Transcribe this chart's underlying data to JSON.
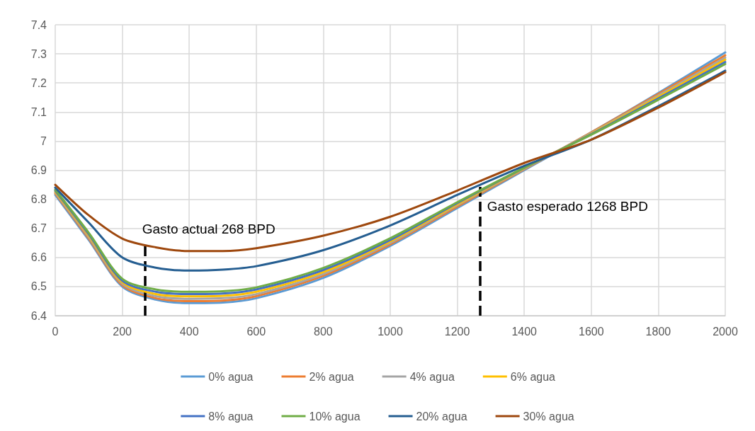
{
  "chart_data": {
    "type": "line",
    "x": [
      0,
      100,
      200,
      300,
      400,
      500,
      600,
      800,
      1000,
      1200,
      1400,
      1600,
      1800,
      2000
    ],
    "xlim": [
      0,
      2000
    ],
    "xticks": [
      0,
      200,
      400,
      600,
      800,
      1000,
      1200,
      1400,
      1600,
      1800,
      2000
    ],
    "ylim": [
      6.4,
      7.4
    ],
    "yticks": [
      6.4,
      6.5,
      6.6,
      6.7,
      6.8,
      6.9,
      7,
      7.1,
      7.2,
      7.3,
      7.4
    ],
    "grid": true,
    "legend": "bottom",
    "marker": "none",
    "line_style": "solid",
    "series": [
      {
        "name": "0% agua",
        "color": "#5b9bd5",
        "values": [
          6.815,
          6.66,
          6.5,
          6.455,
          6.443,
          6.445,
          6.46,
          6.53,
          6.64,
          6.77,
          6.9,
          7.03,
          7.165,
          7.305
        ]
      },
      {
        "name": "2% agua",
        "color": "#ed7d31",
        "values": [
          6.82,
          6.665,
          6.505,
          6.46,
          6.45,
          6.452,
          6.467,
          6.537,
          6.645,
          6.775,
          6.903,
          7.03,
          7.162,
          7.295
        ]
      },
      {
        "name": "4% agua",
        "color": "#a5a5a5",
        "values": [
          6.823,
          6.67,
          6.51,
          6.467,
          6.458,
          6.46,
          6.474,
          6.543,
          6.65,
          6.78,
          6.905,
          7.028,
          7.157,
          7.287
        ]
      },
      {
        "name": "6% agua",
        "color": "#ffc000",
        "values": [
          6.826,
          6.675,
          6.515,
          6.474,
          6.466,
          6.468,
          6.482,
          6.55,
          6.655,
          6.783,
          6.907,
          7.026,
          7.152,
          7.28
        ]
      },
      {
        "name": "8% agua",
        "color": "#4472c4",
        "values": [
          6.83,
          6.68,
          6.52,
          6.482,
          6.474,
          6.476,
          6.49,
          6.557,
          6.66,
          6.787,
          6.908,
          7.024,
          7.147,
          7.272
        ]
      },
      {
        "name": "10% agua",
        "color": "#70ad47",
        "values": [
          6.833,
          6.685,
          6.527,
          6.49,
          6.482,
          6.484,
          6.497,
          6.564,
          6.666,
          6.79,
          6.909,
          7.022,
          7.142,
          7.265
        ]
      },
      {
        "name": "20% agua",
        "color": "#255e91",
        "values": [
          6.84,
          6.72,
          6.6,
          6.565,
          6.555,
          6.558,
          6.57,
          6.625,
          6.71,
          6.815,
          6.915,
          7.005,
          7.12,
          7.242
        ]
      },
      {
        "name": "30% agua",
        "color": "#9e480e",
        "values": [
          6.85,
          6.745,
          6.665,
          6.635,
          6.622,
          6.622,
          6.632,
          6.675,
          6.74,
          6.83,
          6.925,
          7.005,
          7.115,
          7.237
        ]
      }
    ],
    "ref_lines": [
      {
        "axis": "x",
        "value": 268,
        "label": "Gasto actual 268 BPD",
        "color": "#000000",
        "line_style": "dashed"
      },
      {
        "axis": "x",
        "value": 1268,
        "label": "Gasto esperado 1268 BPD",
        "color": "#000000",
        "line_style": "dashed"
      }
    ]
  }
}
